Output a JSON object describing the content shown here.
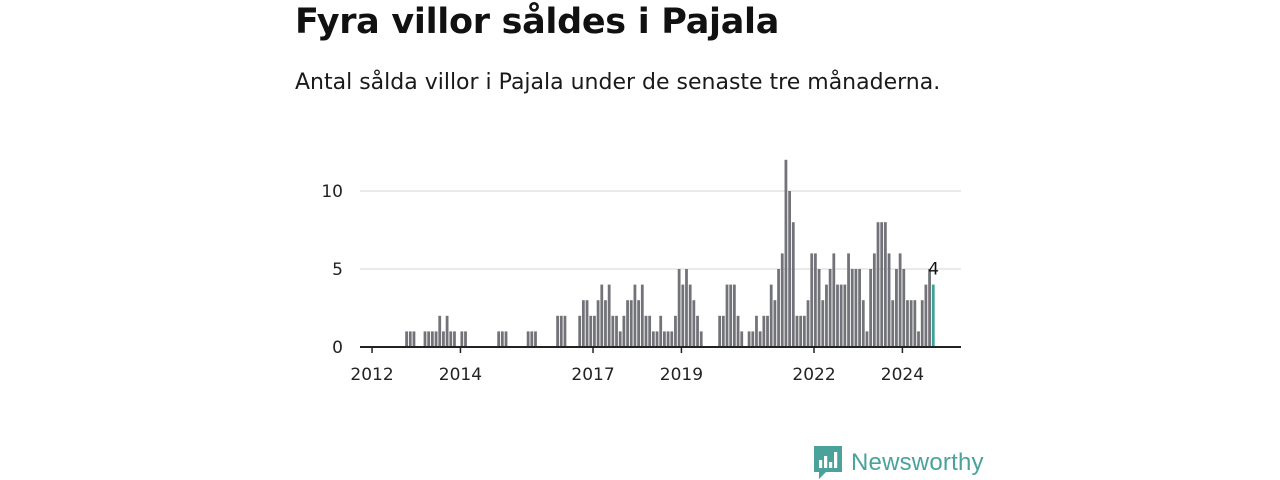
{
  "title": "Fyra villor såldes i Pajala",
  "subtitle": "Antal sålda villor i Pajala under de senaste tre månaderna.",
  "brand": {
    "name": "Newsworthy"
  },
  "colors": {
    "bar": "#727279",
    "highlight": "#3aa29a",
    "grid": "#d4d4d4",
    "axis": "#222222",
    "brand": "#4aa39b"
  },
  "chart_data": {
    "type": "bar",
    "title": "Fyra villor såldes i Pajala",
    "subtitle": "Antal sålda villor i Pajala under de senaste tre månaderna.",
    "xlabel": "",
    "ylabel": "",
    "ylim": [
      0,
      12
    ],
    "yticks": [
      0,
      5,
      10
    ],
    "grid": true,
    "start": "2011-10",
    "xticks": [
      {
        "label": "2012",
        "year": 2012
      },
      {
        "label": "2014",
        "year": 2014
      },
      {
        "label": "2017",
        "year": 2017
      },
      {
        "label": "2019",
        "year": 2019
      },
      {
        "label": "2022",
        "year": 2022
      },
      {
        "label": "2024",
        "year": 2024
      }
    ],
    "highlight_label": "4",
    "values": [
      0,
      0,
      0,
      0,
      0,
      0,
      0,
      0,
      0,
      0,
      0,
      0,
      1,
      1,
      1,
      0,
      0,
      1,
      1,
      1,
      1,
      2,
      1,
      2,
      1,
      1,
      0,
      1,
      1,
      0,
      0,
      0,
      0,
      0,
      0,
      0,
      0,
      1,
      1,
      1,
      0,
      0,
      0,
      0,
      0,
      1,
      1,
      1,
      0,
      0,
      0,
      0,
      0,
      2,
      2,
      2,
      0,
      0,
      0,
      2,
      3,
      3,
      2,
      2,
      3,
      4,
      3,
      4,
      2,
      2,
      1,
      2,
      3,
      3,
      4,
      3,
      4,
      2,
      2,
      1,
      1,
      2,
      1,
      1,
      1,
      2,
      5,
      4,
      5,
      4,
      3,
      2,
      1,
      0,
      0,
      0,
      0,
      2,
      2,
      4,
      4,
      4,
      2,
      1,
      0,
      1,
      1,
      2,
      1,
      2,
      2,
      4,
      3,
      5,
      6,
      12,
      10,
      8,
      2,
      2,
      2,
      3,
      6,
      6,
      5,
      3,
      4,
      5,
      6,
      4,
      4,
      4,
      6,
      5,
      5,
      5,
      3,
      1,
      5,
      6,
      8,
      8,
      8,
      6,
      3,
      5,
      6,
      5,
      3,
      3,
      3,
      1,
      3,
      4,
      5,
      4
    ]
  }
}
